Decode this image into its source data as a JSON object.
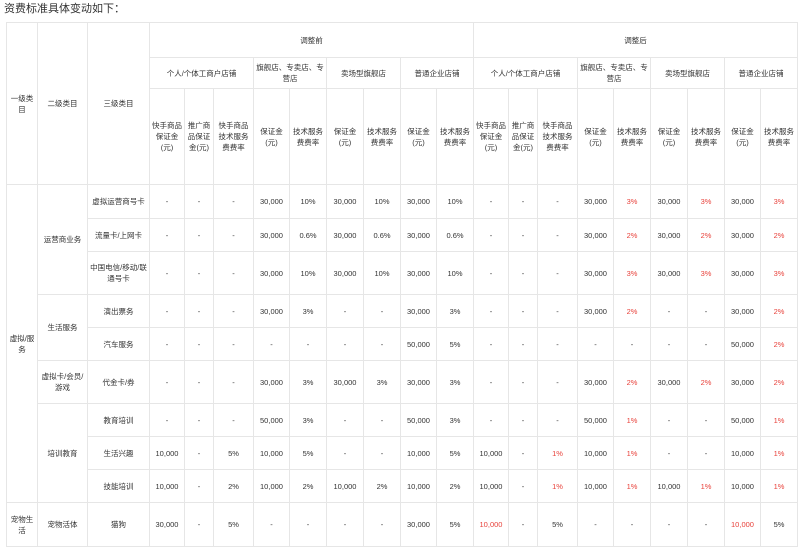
{
  "intro": "资费标准具体变动如下：",
  "colors": {
    "highlight": "#e8423b",
    "border": "#e6e6e6",
    "text": "#333333"
  },
  "header": {
    "level1": "一级类目",
    "level2": "二级类目",
    "level3": "三级类目",
    "before": "调整前",
    "after": "调整后",
    "groups": [
      "个人/个体工商户店铺",
      "旗舰店、专卖店、专营店",
      "卖场型旗舰店",
      "普通企业店铺"
    ],
    "sub": {
      "kuaishou": "快手商品保证金(元)",
      "tuiguang": "推广商品保证金(元)",
      "ks_rate": "快手商品技术服务费费率",
      "deposit": "保证金(元)",
      "rate": "技术服务费费率"
    }
  },
  "categories": {
    "l1_virtual": "虚拟/服务",
    "l1_pet": "宠物生活",
    "l2_telecom": "运营商业务",
    "l2_life": "生活服务",
    "l2_virtual_card": "虚拟卡/会员/游戏",
    "l2_training": "培训教育",
    "l2_pet": "宠物活体"
  },
  "rows": [
    {
      "name": "虚拟运营商号卡",
      "before": [
        "-",
        "-",
        "-",
        "30,000",
        "10%",
        "30,000",
        "10%",
        "30,000",
        "10%"
      ],
      "after": [
        "-",
        "-",
        "-",
        "30,000",
        "3%",
        "30,000",
        "3%",
        "30,000",
        "3%"
      ]
    },
    {
      "name": "流量卡/上网卡",
      "before": [
        "-",
        "-",
        "-",
        "30,000",
        "0.6%",
        "30,000",
        "0.6%",
        "30,000",
        "0.6%"
      ],
      "after": [
        "-",
        "-",
        "-",
        "30,000",
        "2%",
        "30,000",
        "2%",
        "30,000",
        "2%"
      ]
    },
    {
      "name": "中国电信/移动/联通号卡",
      "before": [
        "-",
        "-",
        "-",
        "30,000",
        "10%",
        "30,000",
        "10%",
        "30,000",
        "10%"
      ],
      "after": [
        "-",
        "-",
        "-",
        "30,000",
        "3%",
        "30,000",
        "3%",
        "30,000",
        "3%"
      ]
    },
    {
      "name": "演出票务",
      "before": [
        "-",
        "-",
        "-",
        "30,000",
        "3%",
        "-",
        "-",
        "30,000",
        "3%"
      ],
      "after": [
        "-",
        "-",
        "-",
        "30,000",
        "2%",
        "-",
        "-",
        "30,000",
        "2%"
      ]
    },
    {
      "name": "汽车服务",
      "before": [
        "-",
        "-",
        "-",
        "-",
        "-",
        "-",
        "-",
        "50,000",
        "5%"
      ],
      "after": [
        "-",
        "-",
        "-",
        "-",
        "-",
        "-",
        "-",
        "50,000",
        "2%"
      ]
    },
    {
      "name": "代金卡/券",
      "before": [
        "-",
        "-",
        "-",
        "30,000",
        "3%",
        "30,000",
        "3%",
        "30,000",
        "3%"
      ],
      "after": [
        "-",
        "-",
        "-",
        "30,000",
        "2%",
        "30,000",
        "2%",
        "30,000",
        "2%"
      ]
    },
    {
      "name": "教育培训",
      "before": [
        "-",
        "-",
        "-",
        "50,000",
        "3%",
        "-",
        "-",
        "50,000",
        "3%"
      ],
      "after": [
        "-",
        "-",
        "-",
        "50,000",
        "1%",
        "-",
        "-",
        "50,000",
        "1%"
      ]
    },
    {
      "name": "生活兴趣",
      "before": [
        "10,000",
        "-",
        "5%",
        "10,000",
        "5%",
        "-",
        "-",
        "10,000",
        "5%"
      ],
      "after": [
        "10,000",
        "-",
        "1%",
        "10,000",
        "1%",
        "-",
        "-",
        "10,000",
        "1%"
      ]
    },
    {
      "name": "技能培训",
      "before": [
        "10,000",
        "-",
        "2%",
        "10,000",
        "2%",
        "10,000",
        "2%",
        "10,000",
        "2%"
      ],
      "after": [
        "10,000",
        "-",
        "1%",
        "10,000",
        "1%",
        "10,000",
        "1%",
        "10,000",
        "1%"
      ]
    },
    {
      "name": "猫狗",
      "before": [
        "30,000",
        "-",
        "5%",
        "-",
        "-",
        "-",
        "-",
        "30,000",
        "5%"
      ],
      "after": [
        "10,000",
        "-",
        "5%",
        "-",
        "-",
        "-",
        "-",
        "10,000",
        "5%"
      ]
    }
  ]
}
